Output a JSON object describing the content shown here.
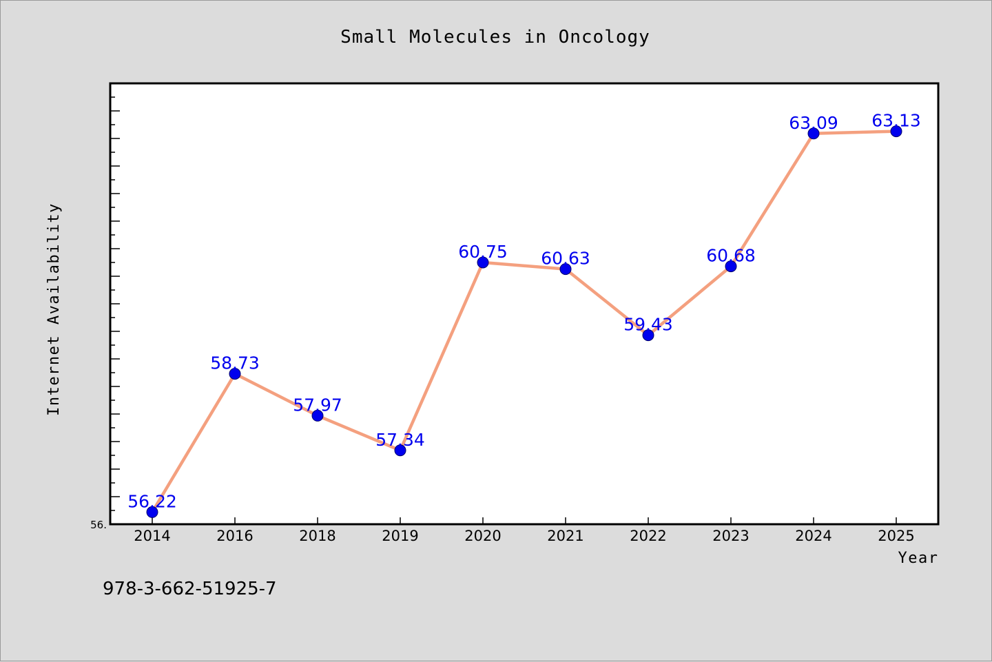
{
  "chart_data": {
    "type": "line",
    "title": "Small Molecules in Oncology",
    "xlabel": "Year",
    "ylabel": "Internet Availability",
    "categories": [
      "2014",
      "2016",
      "2018",
      "2019",
      "2020",
      "2021",
      "2022",
      "2023",
      "2024",
      "2025"
    ],
    "series": [
      {
        "values": [
          56.22,
          58.73,
          57.97,
          57.34,
          60.75,
          60.63,
          59.43,
          60.68,
          63.09,
          63.13
        ],
        "labels": [
          "56.22",
          "58.73",
          "57.97",
          "57.34",
          "60.75",
          "60.63",
          "59.43",
          "60.68",
          "63.09",
          "63.13"
        ]
      }
    ],
    "ylim": [
      56.0,
      64.0
    ],
    "yticks_labeled": [
      "56."
    ],
    "grid": false,
    "colors": {
      "line": "#f4a07f",
      "marker": "#0000ee",
      "data_label": "#0000ee",
      "background": "#dcdcdc",
      "plot_bg": "#ffffff"
    }
  },
  "footer": {
    "isbn": "978-3-662-51925-7"
  }
}
